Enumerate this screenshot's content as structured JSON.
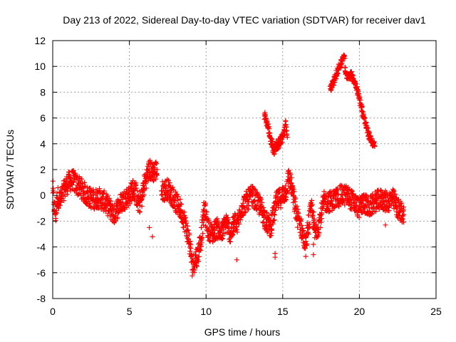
{
  "chart_data": {
    "type": "scatter",
    "title": "Day 213 of 2022, Sidereal Day-to-day VTEC variation (SDTVAR) for receiver dav1",
    "xlabel": "GPS time / hours",
    "ylabel": "SDTVAR / TECUs",
    "xlim": [
      0,
      25
    ],
    "ylim": [
      -8,
      12
    ],
    "xticks": [
      "0",
      "5",
      "10",
      "15",
      "20",
      "25"
    ],
    "xtick_values": [
      0,
      5,
      10,
      15,
      20,
      25
    ],
    "yticks": [
      "-8",
      "-6",
      "-4",
      "-2",
      "0",
      "2",
      "4",
      "6",
      "8",
      "10",
      "12"
    ],
    "ytick_values": [
      -8,
      -6,
      -4,
      -2,
      0,
      2,
      4,
      6,
      8,
      10,
      12
    ],
    "grid": true,
    "marker": "plus",
    "color": "#ff0000",
    "series": [
      {
        "name": "main",
        "spread": 0.8,
        "points": [
          [
            0,
            0.5
          ],
          [
            0.1,
            -1
          ],
          [
            0.2,
            -1.5
          ],
          [
            0.3,
            0
          ],
          [
            0.5,
            -0.5
          ],
          [
            0.7,
            0.3
          ],
          [
            1.0,
            1.0
          ],
          [
            1.3,
            1.2
          ],
          [
            1.6,
            0.8
          ],
          [
            1.9,
            0.5
          ],
          [
            2.2,
            0
          ],
          [
            2.6,
            -0.3
          ],
          [
            3.0,
            -0.2
          ],
          [
            3.4,
            -0.5
          ],
          [
            3.7,
            -1
          ],
          [
            4.0,
            -1.5
          ],
          [
            4.3,
            -0.8
          ],
          [
            4.6,
            -0.4
          ],
          [
            5.0,
            0
          ],
          [
            5.2,
            0.5
          ],
          [
            5.4,
            0.3
          ],
          [
            5.6,
            -0.8
          ],
          [
            5.8,
            -0.2
          ],
          [
            6.0,
            1.0
          ],
          [
            6.3,
            2.0
          ],
          [
            6.5,
            1.8
          ],
          [
            6.8,
            2.0
          ]
        ]
      },
      {
        "name": "main",
        "spread": 0.8,
        "points": [
          [
            7.1,
            0.3
          ],
          [
            7.5,
            0.5
          ],
          [
            7.8,
            0
          ],
          [
            8.0,
            -0.5
          ],
          [
            8.3,
            -1
          ],
          [
            8.6,
            -2
          ],
          [
            8.9,
            -3.5
          ],
          [
            9.1,
            -5.5
          ],
          [
            9.3,
            -5
          ],
          [
            9.5,
            -4.5
          ],
          [
            9.7,
            -3
          ],
          [
            9.9,
            -1
          ],
          [
            10.1,
            -2.5
          ],
          [
            10.4,
            -3
          ],
          [
            10.7,
            -2.5
          ],
          [
            11.0,
            -3
          ],
          [
            11.3,
            -2
          ],
          [
            11.6,
            -3
          ],
          [
            11.9,
            -2
          ],
          [
            12.0,
            -2.5
          ],
          [
            12.3,
            -1
          ],
          [
            12.6,
            -0.5
          ],
          [
            13.0,
            0
          ],
          [
            13.3,
            -0.5
          ],
          [
            13.6,
            -1
          ],
          [
            13.9,
            -2
          ],
          [
            14.2,
            -2.5
          ],
          [
            14.6,
            -0.5
          ],
          [
            15.0,
            0
          ],
          [
            15.2,
            0.3
          ],
          [
            15.4,
            1.5
          ],
          [
            15.6,
            0.5
          ],
          [
            15.9,
            -1.5
          ],
          [
            16.2,
            -2.5
          ],
          [
            16.5,
            -4
          ],
          [
            16.7,
            -2
          ],
          [
            16.9,
            -1
          ],
          [
            17.1,
            -3
          ],
          [
            17.4,
            -2
          ],
          [
            17.7,
            -0.5
          ],
          [
            18.0,
            -0.5
          ],
          [
            18.4,
            -0.3
          ],
          [
            18.8,
            0
          ],
          [
            19.2,
            0
          ],
          [
            19.6,
            -0.5
          ],
          [
            20.0,
            -1
          ],
          [
            20.3,
            -0.5
          ],
          [
            20.6,
            -1
          ],
          [
            21.0,
            -0.5
          ],
          [
            21.4,
            -0.3
          ],
          [
            21.8,
            -0.5
          ],
          [
            22.2,
            -0.3
          ],
          [
            22.5,
            -1
          ],
          [
            22.9,
            -1.5
          ]
        ]
      },
      {
        "name": "arc1",
        "spread": 0.4,
        "points": [
          [
            13.8,
            6.3
          ],
          [
            14.0,
            5.5
          ],
          [
            14.2,
            4.5
          ],
          [
            14.4,
            3.5
          ],
          [
            14.7,
            4.0
          ],
          [
            15.0,
            4.5
          ],
          [
            15.2,
            5.5
          ],
          [
            15.3,
            4.5
          ]
        ]
      },
      {
        "name": "arc2",
        "spread": 0.3,
        "points": [
          [
            18.1,
            8.3
          ],
          [
            18.3,
            8.7
          ],
          [
            18.6,
            9.8
          ],
          [
            18.8,
            10.2
          ],
          [
            19.0,
            11.0
          ],
          [
            19.1,
            9.3
          ],
          [
            19.5,
            9.3
          ],
          [
            19.8,
            8.5
          ],
          [
            20.0,
            7.5
          ],
          [
            20.3,
            6.0
          ],
          [
            20.6,
            4.7
          ],
          [
            21.0,
            3.8
          ]
        ]
      },
      {
        "name": "outliers",
        "spread": 0,
        "points": [
          [
            6.3,
            -2.5
          ],
          [
            6.5,
            -3.2
          ],
          [
            14.5,
            -4.5
          ],
          [
            14.5,
            -4.8
          ],
          [
            17.0,
            -3.8
          ],
          [
            17.0,
            -4.6
          ],
          [
            12.0,
            -5.0
          ],
          [
            21.7,
            -2.3
          ]
        ]
      }
    ]
  }
}
